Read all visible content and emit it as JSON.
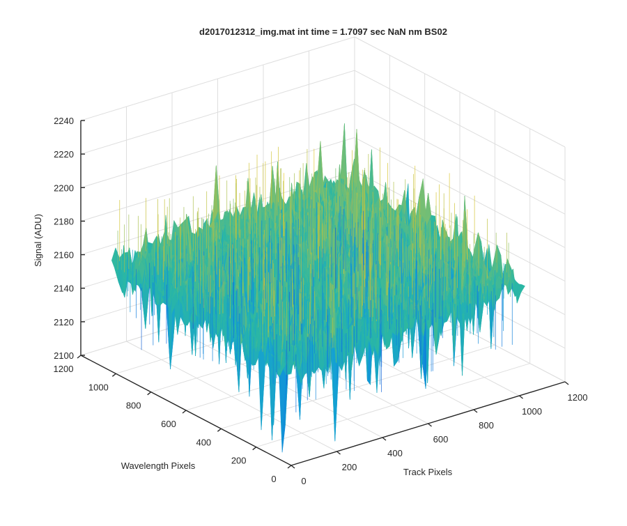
{
  "chart_data": {
    "type": "surface",
    "title": "d2017012312_img.mat int time = 1.7097 sec  NaN nm BS02",
    "xlabel": "Track Pixels",
    "ylabel": "Wavelength Pixels",
    "zlabel": "Signal (ADU)",
    "xlim": [
      0,
      1200
    ],
    "ylim": [
      0,
      1200
    ],
    "zlim": [
      2100,
      2240
    ],
    "xticks": [
      0,
      200,
      400,
      600,
      800,
      1000,
      1200
    ],
    "xtick_labels": [
      "0",
      "200",
      "400",
      "600",
      "800",
      "1000",
      "1200"
    ],
    "yticks": [
      0,
      200,
      400,
      600,
      800,
      1000,
      1200
    ],
    "ytick_labels": [
      "0",
      "200",
      "400",
      "600",
      "800",
      "1000",
      "1200"
    ],
    "zticks": [
      2100,
      2120,
      2140,
      2160,
      2180,
      2200,
      2220,
      2240
    ],
    "ztick_labels": [
      "2100",
      "2120",
      "2140",
      "2160",
      "2180",
      "2200",
      "2220",
      "2240"
    ],
    "grid": true,
    "colormap": "parula",
    "colormap_stops": [
      "#3e26a8",
      "#0d6fe0",
      "#14a0d4",
      "#2bb7a4",
      "#7dbf6e",
      "#c9c136",
      "#f2cf30"
    ],
    "surface_extent": {
      "track_pixels": [
        0,
        1024
      ],
      "wavelength_pixels": [
        0,
        1024
      ]
    },
    "surface_mean_signal": 2165,
    "surface_signal_range": [
      2105,
      2220
    ]
  }
}
